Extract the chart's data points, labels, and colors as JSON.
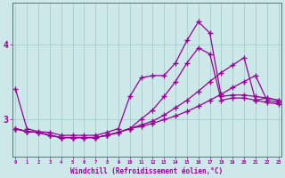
{
  "xlabel": "Windchill (Refroidissement éolien,°C)",
  "background_color": "#cce8e8",
  "line_color": "#990099",
  "grid_color": "#aacccc",
  "hours": [
    0,
    1,
    2,
    3,
    4,
    5,
    6,
    7,
    8,
    9,
    10,
    11,
    12,
    13,
    14,
    15,
    16,
    17,
    18,
    19,
    20,
    21,
    22,
    23
  ],
  "line1": [
    3.4,
    2.87,
    2.83,
    2.82,
    2.78,
    2.78,
    2.78,
    2.78,
    2.82,
    2.87,
    3.3,
    3.55,
    3.58,
    3.58,
    3.75,
    4.05,
    4.3,
    4.15,
    3.3,
    3.32,
    3.32,
    3.3,
    3.28,
    3.25
  ],
  "line2": [
    2.87,
    2.83,
    2.82,
    2.78,
    2.75,
    2.75,
    2.75,
    2.75,
    2.78,
    2.82,
    2.87,
    3.0,
    3.12,
    3.3,
    3.5,
    3.75,
    3.95,
    3.87,
    3.25,
    3.28,
    3.28,
    3.25,
    3.22,
    3.2
  ],
  "line3": [
    2.87,
    2.83,
    2.82,
    2.78,
    2.75,
    2.75,
    2.75,
    2.75,
    2.78,
    2.82,
    2.87,
    2.92,
    2.97,
    3.05,
    3.15,
    3.25,
    3.37,
    3.5,
    3.62,
    3.72,
    3.82,
    3.25,
    3.28,
    3.25
  ],
  "line4": [
    2.87,
    2.83,
    2.82,
    2.78,
    2.75,
    2.75,
    2.75,
    2.75,
    2.78,
    2.82,
    2.87,
    2.9,
    2.94,
    2.99,
    3.04,
    3.1,
    3.17,
    3.25,
    3.33,
    3.42,
    3.5,
    3.58,
    3.25,
    3.22
  ],
  "ylim": [
    2.5,
    4.55
  ],
  "xlim": [
    -0.3,
    23.3
  ],
  "yticks": [
    3,
    4
  ],
  "xticks": [
    0,
    1,
    2,
    3,
    4,
    5,
    6,
    7,
    8,
    9,
    10,
    11,
    12,
    13,
    14,
    15,
    16,
    17,
    18,
    19,
    20,
    21,
    22,
    23
  ]
}
